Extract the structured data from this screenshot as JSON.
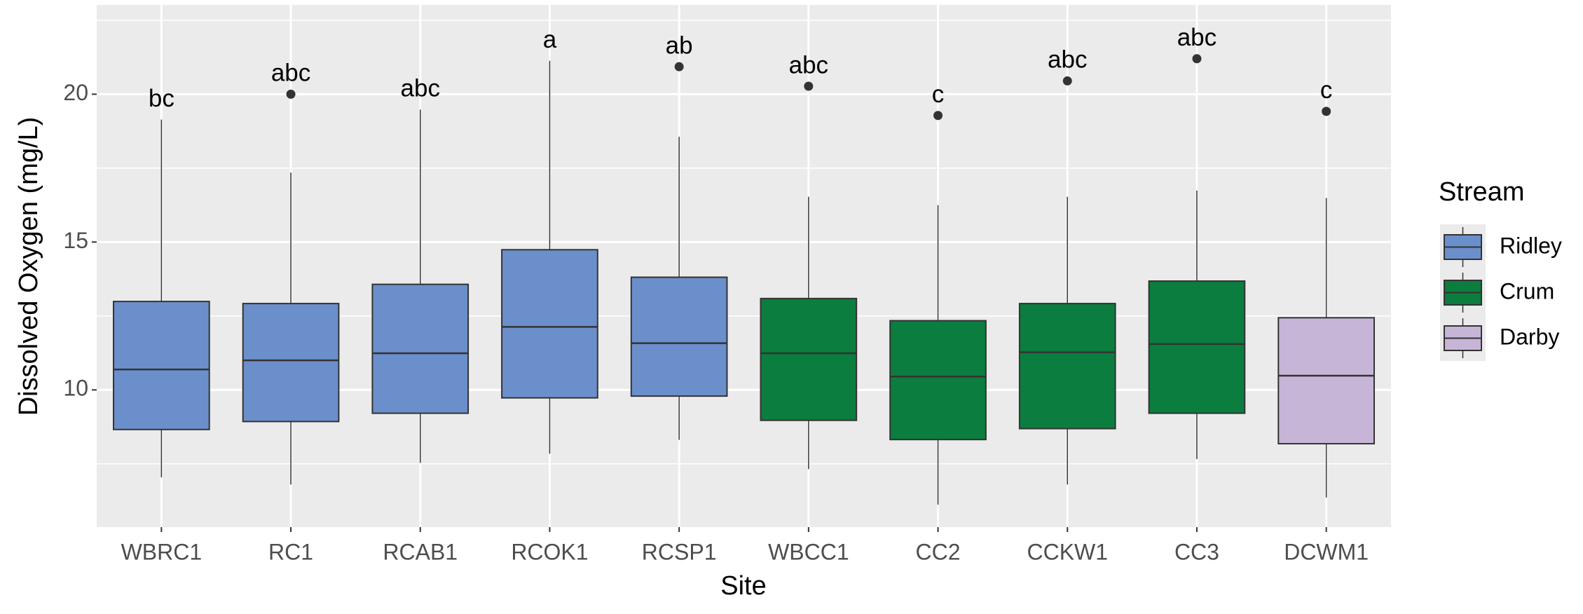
{
  "chart_data": {
    "type": "box",
    "x_label": "Site",
    "y_label": "Dissolved Oxygen (mg/L)",
    "categories": [
      "WBRC1",
      "RC1",
      "RCAB1",
      "RCOK1",
      "RCSP1",
      "WBCC1",
      "CC2",
      "CCKW1",
      "CC3",
      "DCWM1"
    ],
    "ylim": [
      5.36,
      23.02
    ],
    "yticks": [
      10,
      15,
      20
    ],
    "grid": true,
    "legend_title": "Stream",
    "legend_position": "right",
    "series": [
      {
        "name": "Ridley",
        "color": "#6b8fcb",
        "values": [
          {
            "low": 7.04,
            "q1": 8.66,
            "median": 10.69,
            "q3": 12.99,
            "high": 19.14,
            "outliers": []
          },
          {
            "low": 6.8,
            "q1": 8.93,
            "median": 11.0,
            "q3": 12.92,
            "high": 17.35,
            "outliers": [
              20.0
            ]
          },
          {
            "low": 7.53,
            "q1": 9.21,
            "median": 11.24,
            "q3": 13.57,
            "high": 19.48,
            "outliers": []
          },
          {
            "low": 7.84,
            "q1": 9.73,
            "median": 12.13,
            "q3": 14.74,
            "high": 21.13,
            "outliers": []
          },
          {
            "low": 8.31,
            "q1": 9.79,
            "median": 11.58,
            "q3": 13.81,
            "high": 18.56,
            "outliers": [
              20.93
            ]
          },
          null,
          null,
          null,
          null,
          null
        ]
      },
      {
        "name": "Crum",
        "color": "#0b7d3e",
        "values": [
          null,
          null,
          null,
          null,
          null,
          {
            "low": 7.32,
            "q1": 8.97,
            "median": 11.24,
            "q3": 13.09,
            "high": 16.53,
            "outliers": [
              20.27
            ]
          },
          {
            "low": 6.12,
            "q1": 8.32,
            "median": 10.45,
            "q3": 12.34,
            "high": 16.25,
            "outliers": [
              19.28
            ]
          },
          {
            "low": 6.8,
            "q1": 8.69,
            "median": 11.27,
            "q3": 12.92,
            "high": 16.53,
            "outliers": [
              20.45
            ]
          },
          {
            "low": 7.66,
            "q1": 9.21,
            "median": 11.55,
            "q3": 13.68,
            "high": 16.74,
            "outliers": [
              21.2
            ]
          },
          null
        ]
      },
      {
        "name": "Darby",
        "color": "#c7b5d8",
        "values": [
          null,
          null,
          null,
          null,
          null,
          null,
          null,
          null,
          null,
          {
            "low": 6.36,
            "q1": 8.18,
            "median": 10.48,
            "q3": 12.44,
            "high": 16.49,
            "outliers": [
              19.42
            ]
          }
        ]
      }
    ],
    "annotations": [
      "bc",
      "abc",
      "abc",
      "a",
      "ab",
      "abc",
      "c",
      "abc",
      "abc",
      "c"
    ]
  }
}
